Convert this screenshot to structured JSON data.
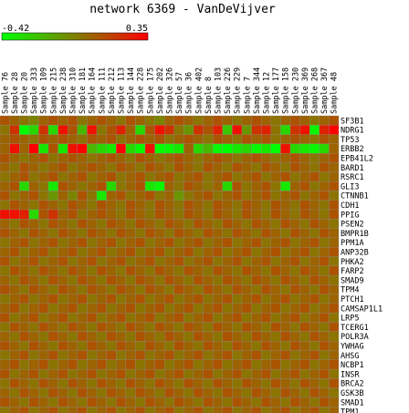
{
  "chart_data": {
    "type": "heatmap",
    "title": "network 6369 - VanDeVijver",
    "legend": {
      "min_label": "-0.42",
      "max_label": "0.35",
      "min": -0.42,
      "max": 0.35,
      "low_color": "#00ff00",
      "high_color": "#ff0000"
    },
    "columns": [
      "Sample 76",
      "Sample 28",
      "Sample 20",
      "Sample 333",
      "Sample 109",
      "Sample 215",
      "Sample 238",
      "Sample 310",
      "Sample 181",
      "Sample 164",
      "Sample 111",
      "Sample 212",
      "Sample 113",
      "Sample 144",
      "Sample 228",
      "Sample 175",
      "Sample 202",
      "Sample 326",
      "Sample 57",
      "Sample 36",
      "Sample 402",
      "Sample 8",
      "Sample 103",
      "Sample 226",
      "Sample 229",
      "Sample 7",
      "Sample 344",
      "Sample 12",
      "Sample 177",
      "Sample 158",
      "Sample 230",
      "Sample 369",
      "Sample 268",
      "Sample 367",
      "Sample 48"
    ],
    "rows": [
      "SF3B1",
      "NDRG1",
      "TP53",
      "ERBB2",
      "EPB41L2",
      "BARD1",
      "RSRC1",
      "GLI3",
      "CTNNB1",
      "CDH1",
      "PPIG",
      "PSEN2",
      "BMPR1B",
      "PPM1A",
      "ANP32B",
      "PHKA2",
      "FARP2",
      "SMAD9",
      "TPM4",
      "PTCH1",
      "CAMSAP1L1",
      "LRP5",
      "TCERG1",
      "POLR3A",
      "YWHAG",
      "AHSG",
      "NCBP1",
      "INSR",
      "BRCA2",
      "GSK3B",
      "SMAD1",
      "TPM1"
    ],
    "values": [
      [
        0.1,
        0.05,
        0.0,
        -0.05,
        0.05,
        0.1,
        0.05,
        0.1,
        0.0,
        0.05,
        0.1,
        0.05,
        0.0,
        0.1,
        0.05,
        0.0,
        -0.05,
        0.05,
        0.1,
        0.05,
        0.0,
        0.05,
        0.1,
        0.05,
        0.0,
        0.05,
        0.1,
        0.05,
        0.0,
        0.05,
        0.1,
        0.05,
        0.0,
        0.05,
        0.1
      ],
      [
        0.0,
        0.2,
        -0.42,
        -0.3,
        0.2,
        -0.3,
        0.3,
        0.1,
        -0.2,
        0.3,
        0.0,
        0.1,
        0.25,
        0.05,
        -0.3,
        0.1,
        0.3,
        0.2,
        0.0,
        -0.1,
        0.2,
        0.1,
        0.25,
        -0.25,
        0.3,
        -0.1,
        0.2,
        0.25,
        0.0,
        -0.3,
        0.2,
        0.3,
        -0.4,
        0.25,
        0.35
      ],
      [
        0.05,
        0.1,
        0.05,
        0.0,
        0.1,
        0.05,
        0.1,
        0.05,
        0.0,
        0.1,
        0.05,
        0.1,
        0.0,
        0.05,
        0.1,
        0.05,
        0.1,
        0.0,
        0.05,
        0.1,
        0.05,
        0.0,
        0.1,
        0.05,
        0.0,
        0.1,
        0.05,
        0.1,
        0.0,
        0.05,
        0.1,
        0.05,
        0.0,
        0.1,
        0.05
      ],
      [
        0.05,
        0.3,
        0.05,
        0.35,
        -0.35,
        0.1,
        -0.35,
        0.3,
        0.35,
        -0.2,
        -0.3,
        -0.35,
        0.35,
        -0.3,
        -0.4,
        0.3,
        -0.42,
        -0.4,
        -0.35,
        0.05,
        -0.3,
        -0.2,
        -0.4,
        -0.42,
        -0.35,
        -0.3,
        -0.4,
        -0.35,
        -0.42,
        0.3,
        -0.3,
        -0.35,
        -0.4,
        -0.3,
        0.05
      ],
      [
        0.1,
        0.05,
        0.0,
        0.05,
        0.1,
        0.0,
        0.05,
        0.1,
        0.05,
        0.0,
        0.05,
        0.1,
        0.05,
        0.0,
        0.1,
        0.05,
        0.0,
        0.05,
        0.1,
        0.05,
        0.0,
        0.05,
        0.1,
        0.05,
        0.0,
        0.05,
        0.1,
        0.05,
        0.0,
        0.05,
        0.1,
        0.05,
        0.0,
        0.05,
        0.1
      ],
      [
        0.05,
        0.0,
        0.1,
        0.05,
        0.0,
        0.05,
        0.1,
        0.0,
        0.05,
        0.1,
        0.05,
        0.0,
        0.1,
        0.05,
        0.0,
        0.1,
        0.05,
        0.0,
        0.1,
        0.05,
        0.0,
        0.1,
        0.05,
        0.0,
        0.1,
        0.05,
        0.0,
        0.1,
        0.05,
        0.0,
        0.1,
        0.05,
        0.0,
        0.1,
        0.05
      ],
      [
        0.0,
        0.05,
        0.1,
        0.0,
        0.05,
        0.1,
        0.0,
        0.05,
        0.1,
        0.0,
        0.05,
        0.1,
        0.0,
        0.05,
        0.1,
        0.0,
        0.05,
        0.1,
        0.0,
        0.05,
        0.1,
        0.0,
        0.05,
        0.1,
        0.0,
        0.05,
        0.1,
        0.0,
        0.05,
        0.1,
        0.0,
        0.05,
        0.1,
        0.0,
        0.05
      ],
      [
        0.05,
        0.1,
        -0.3,
        0.05,
        0.0,
        -0.35,
        0.1,
        0.05,
        0.0,
        0.05,
        0.1,
        -0.3,
        0.0,
        0.05,
        0.1,
        -0.35,
        -0.4,
        0.05,
        0.0,
        0.1,
        0.05,
        0.0,
        0.05,
        -0.3,
        0.1,
        0.0,
        0.05,
        0.1,
        0.0,
        -0.35,
        0.05,
        0.1,
        0.0,
        0.05,
        0.1
      ],
      [
        0.1,
        0.0,
        0.05,
        0.1,
        0.0,
        -0.1,
        0.05,
        -0.05,
        0.1,
        0.0,
        -0.35,
        0.05,
        0.1,
        0.0,
        0.05,
        0.1,
        0.0,
        0.05,
        -0.1,
        0.0,
        0.05,
        0.1,
        0.0,
        0.05,
        0.1,
        0.0,
        0.05,
        0.1,
        0.0,
        0.05,
        0.1,
        0.0,
        0.05,
        0.1,
        0.0
      ],
      [
        0.0,
        0.1,
        0.05,
        0.0,
        0.1,
        0.05,
        0.0,
        0.1,
        0.05,
        0.0,
        0.1,
        0.05,
        0.0,
        0.1,
        0.05,
        0.0,
        0.1,
        0.05,
        0.0,
        0.1,
        0.05,
        0.0,
        0.1,
        0.05,
        0.0,
        0.1,
        0.05,
        0.0,
        0.1,
        0.05,
        0.0,
        0.1,
        0.05,
        0.0,
        0.1
      ],
      [
        0.3,
        0.3,
        0.25,
        -0.3,
        0.1,
        0.2,
        0.05,
        0.1,
        0.0,
        0.05,
        0.1,
        0.05,
        0.0,
        0.1,
        0.05,
        0.0,
        0.1,
        0.05,
        0.0,
        0.1,
        0.05,
        0.0,
        0.1,
        0.05,
        0.0,
        0.1,
        0.05,
        0.0,
        0.1,
        0.05,
        0.0,
        0.1,
        0.05,
        0.0,
        0.1
      ],
      [
        0.05,
        0.0,
        0.1,
        0.05,
        0.0,
        0.1,
        0.05,
        0.0,
        0.1,
        0.05,
        0.0,
        0.1,
        0.05,
        0.0,
        0.1,
        0.05,
        0.0,
        0.1,
        0.05,
        0.0,
        0.1,
        0.05,
        0.0,
        0.1,
        0.05,
        0.0,
        0.1,
        0.05,
        0.0,
        0.1,
        0.05,
        0.0,
        0.1,
        0.05,
        0.0
      ],
      [
        0.1,
        0.05,
        0.0,
        0.1,
        0.05,
        0.0,
        0.1,
        0.05,
        0.0,
        0.1,
        0.05,
        0.0,
        0.1,
        0.05,
        0.0,
        0.1,
        0.05,
        0.0,
        0.1,
        0.05,
        0.0,
        0.1,
        0.05,
        0.0,
        0.1,
        0.05,
        0.0,
        0.1,
        0.05,
        0.0,
        0.1,
        0.05,
        0.0,
        0.1,
        0.05
      ],
      [
        0.0,
        0.05,
        0.1,
        0.0,
        0.05,
        0.1,
        0.0,
        0.05,
        0.1,
        0.0,
        0.05,
        0.1,
        0.0,
        0.05,
        0.1,
        0.0,
        0.05,
        0.1,
        0.0,
        0.05,
        0.1,
        0.0,
        0.05,
        0.1,
        0.0,
        0.05,
        0.1,
        0.0,
        0.05,
        0.1,
        0.0,
        0.05,
        0.1,
        0.0,
        0.05
      ],
      [
        0.05,
        0.1,
        0.0,
        0.05,
        0.1,
        0.0,
        0.05,
        0.1,
        0.0,
        0.05,
        0.1,
        0.0,
        0.05,
        0.1,
        0.0,
        0.05,
        0.1,
        0.0,
        0.05,
        0.1,
        0.0,
        0.05,
        0.1,
        0.0,
        0.05,
        0.1,
        0.0,
        0.05,
        0.1,
        0.0,
        0.05,
        0.1,
        0.0,
        0.05,
        0.1
      ],
      [
        0.1,
        0.0,
        0.05,
        0.1,
        0.0,
        0.05,
        0.1,
        0.0,
        0.05,
        0.1,
        0.0,
        0.05,
        0.1,
        0.0,
        0.05,
        0.1,
        0.0,
        0.05,
        0.1,
        0.0,
        0.05,
        0.1,
        0.0,
        0.05,
        0.1,
        0.0,
        0.05,
        0.1,
        0.0,
        0.05,
        0.1,
        0.0,
        0.05,
        0.1,
        0.0
      ],
      [
        0.0,
        0.1,
        0.05,
        0.0,
        0.1,
        0.05,
        0.0,
        0.1,
        0.05,
        0.0,
        0.1,
        0.05,
        0.0,
        0.1,
        0.05,
        0.0,
        0.1,
        0.05,
        0.0,
        0.1,
        0.05,
        0.0,
        0.1,
        0.05,
        0.0,
        0.1,
        0.05,
        0.0,
        0.1,
        0.05,
        0.0,
        0.1,
        0.05,
        0.0,
        0.1
      ],
      [
        0.05,
        0.0,
        0.1,
        0.05,
        0.0,
        0.1,
        0.05,
        0.0,
        0.1,
        0.05,
        0.0,
        0.1,
        0.05,
        0.0,
        0.1,
        0.05,
        0.0,
        0.1,
        0.05,
        0.0,
        0.1,
        0.05,
        0.0,
        0.1,
        0.05,
        0.0,
        0.1,
        0.05,
        0.0,
        0.1,
        0.05,
        0.0,
        0.1,
        0.05,
        0.0
      ],
      [
        0.1,
        0.05,
        0.0,
        0.1,
        0.05,
        0.0,
        0.1,
        0.05,
        0.0,
        0.1,
        0.05,
        0.0,
        0.1,
        0.05,
        0.0,
        0.1,
        0.05,
        0.0,
        0.1,
        0.05,
        0.0,
        0.1,
        0.05,
        0.0,
        0.1,
        0.05,
        0.0,
        0.1,
        0.05,
        0.0,
        0.1,
        0.05,
        0.0,
        0.1,
        0.05
      ],
      [
        0.0,
        0.05,
        0.1,
        0.0,
        0.05,
        0.1,
        0.0,
        0.05,
        0.1,
        0.0,
        0.05,
        0.1,
        0.0,
        0.05,
        0.1,
        0.0,
        0.05,
        0.1,
        0.0,
        0.05,
        0.1,
        0.0,
        0.05,
        0.1,
        0.0,
        0.05,
        0.1,
        0.0,
        0.05,
        0.1,
        0.0,
        0.05,
        0.1,
        0.0,
        0.05
      ],
      [
        0.05,
        0.1,
        0.0,
        0.05,
        0.1,
        0.0,
        0.05,
        0.1,
        0.0,
        0.05,
        0.1,
        0.0,
        0.05,
        0.1,
        0.0,
        0.05,
        0.1,
        0.0,
        0.05,
        0.1,
        0.0,
        0.05,
        0.1,
        0.0,
        0.05,
        0.1,
        0.0,
        0.05,
        0.1,
        0.0,
        0.05,
        0.1,
        0.0,
        0.05,
        0.1
      ],
      [
        0.1,
        0.0,
        0.05,
        0.1,
        0.0,
        0.05,
        0.1,
        0.0,
        0.05,
        0.1,
        0.0,
        0.05,
        0.1,
        0.0,
        0.05,
        0.1,
        0.0,
        0.05,
        0.1,
        0.0,
        0.05,
        0.1,
        0.0,
        0.05,
        0.1,
        0.0,
        0.05,
        0.1,
        0.0,
        0.05,
        0.1,
        0.0,
        0.05,
        0.1,
        0.0
      ],
      [
        0.0,
        0.1,
        0.05,
        0.0,
        0.1,
        0.05,
        0.0,
        0.1,
        0.05,
        0.0,
        0.1,
        0.05,
        0.0,
        0.1,
        0.05,
        0.0,
        0.1,
        0.05,
        0.0,
        0.1,
        0.05,
        0.0,
        0.1,
        0.05,
        0.0,
        0.1,
        0.05,
        0.0,
        0.1,
        0.05,
        0.0,
        0.1,
        0.05,
        0.0,
        0.1
      ],
      [
        0.05,
        0.0,
        0.1,
        0.05,
        0.0,
        0.1,
        0.05,
        0.0,
        0.1,
        0.05,
        0.0,
        0.1,
        0.05,
        0.0,
        0.1,
        0.05,
        0.0,
        0.1,
        0.05,
        0.0,
        0.1,
        0.05,
        0.0,
        0.1,
        0.05,
        0.0,
        0.1,
        0.05,
        0.0,
        0.1,
        0.05,
        0.0,
        0.1,
        0.05,
        0.0
      ],
      [
        0.1,
        0.05,
        0.0,
        0.1,
        0.05,
        0.0,
        0.1,
        0.05,
        0.0,
        0.1,
        0.05,
        0.0,
        0.1,
        0.05,
        0.0,
        0.1,
        0.05,
        0.0,
        0.1,
        0.05,
        0.0,
        0.1,
        0.05,
        0.0,
        0.1,
        0.05,
        0.0,
        0.1,
        0.05,
        0.0,
        0.1,
        0.05,
        0.0,
        0.1,
        0.05
      ],
      [
        0.0,
        0.05,
        0.1,
        0.0,
        0.05,
        0.1,
        0.0,
        0.05,
        0.1,
        0.0,
        0.05,
        0.1,
        0.0,
        0.05,
        0.1,
        0.0,
        0.05,
        0.1,
        0.0,
        0.05,
        0.1,
        0.0,
        0.05,
        0.1,
        0.0,
        0.05,
        0.1,
        0.0,
        0.05,
        0.1,
        0.0,
        0.05,
        0.1,
        0.0,
        0.05
      ],
      [
        0.05,
        0.1,
        0.0,
        0.05,
        0.1,
        0.0,
        0.05,
        0.1,
        0.0,
        0.05,
        0.1,
        0.0,
        0.05,
        0.1,
        0.0,
        0.05,
        0.1,
        0.0,
        0.05,
        0.1,
        0.0,
        0.05,
        0.1,
        0.0,
        0.05,
        0.1,
        0.0,
        0.05,
        0.1,
        0.0,
        0.05,
        0.1,
        0.0,
        0.05,
        0.1
      ],
      [
        0.1,
        0.0,
        0.05,
        0.1,
        0.0,
        0.05,
        0.1,
        0.0,
        0.05,
        0.1,
        0.0,
        0.05,
        0.1,
        0.0,
        0.05,
        0.1,
        0.0,
        0.05,
        0.1,
        0.0,
        0.05,
        0.1,
        0.0,
        0.05,
        0.1,
        0.0,
        0.05,
        0.1,
        0.0,
        0.05,
        0.1,
        0.0,
        0.05,
        0.1,
        0.0
      ],
      [
        0.0,
        0.1,
        0.05,
        0.0,
        0.1,
        0.05,
        0.0,
        0.1,
        0.05,
        0.0,
        0.1,
        0.05,
        0.0,
        0.1,
        0.05,
        0.0,
        0.1,
        0.05,
        0.0,
        0.1,
        0.05,
        0.0,
        0.1,
        0.05,
        0.0,
        0.1,
        0.05,
        0.0,
        0.1,
        0.05,
        0.0,
        0.1,
        0.05,
        0.0,
        0.1
      ],
      [
        0.05,
        0.0,
        0.1,
        0.05,
        0.0,
        0.1,
        0.05,
        0.0,
        0.1,
        0.05,
        0.0,
        0.1,
        0.05,
        0.0,
        0.1,
        0.05,
        0.0,
        0.1,
        0.05,
        0.0,
        0.1,
        0.05,
        0.0,
        0.1,
        0.05,
        0.0,
        0.1,
        0.05,
        0.0,
        0.1,
        0.05,
        0.0,
        0.1,
        0.05,
        0.0
      ],
      [
        0.1,
        0.05,
        0.0,
        0.1,
        0.05,
        0.0,
        0.1,
        0.05,
        0.0,
        0.1,
        0.05,
        0.0,
        0.1,
        0.05,
        0.0,
        0.1,
        0.05,
        0.0,
        0.1,
        0.05,
        0.0,
        0.1,
        0.05,
        0.0,
        0.1,
        0.05,
        0.0,
        0.1,
        0.05,
        0.0,
        0.1,
        0.05,
        0.0,
        0.1,
        0.05
      ],
      [
        0.0,
        0.05,
        0.1,
        0.0,
        0.05,
        0.1,
        0.0,
        0.05,
        0.1,
        0.0,
        0.05,
        0.1,
        0.0,
        0.05,
        0.1,
        0.0,
        0.05,
        0.1,
        0.0,
        0.05,
        0.1,
        0.0,
        0.05,
        0.1,
        0.0,
        0.05,
        0.1,
        0.0,
        0.05,
        0.1,
        0.0,
        0.05,
        0.1,
        0.0,
        0.05
      ]
    ]
  }
}
